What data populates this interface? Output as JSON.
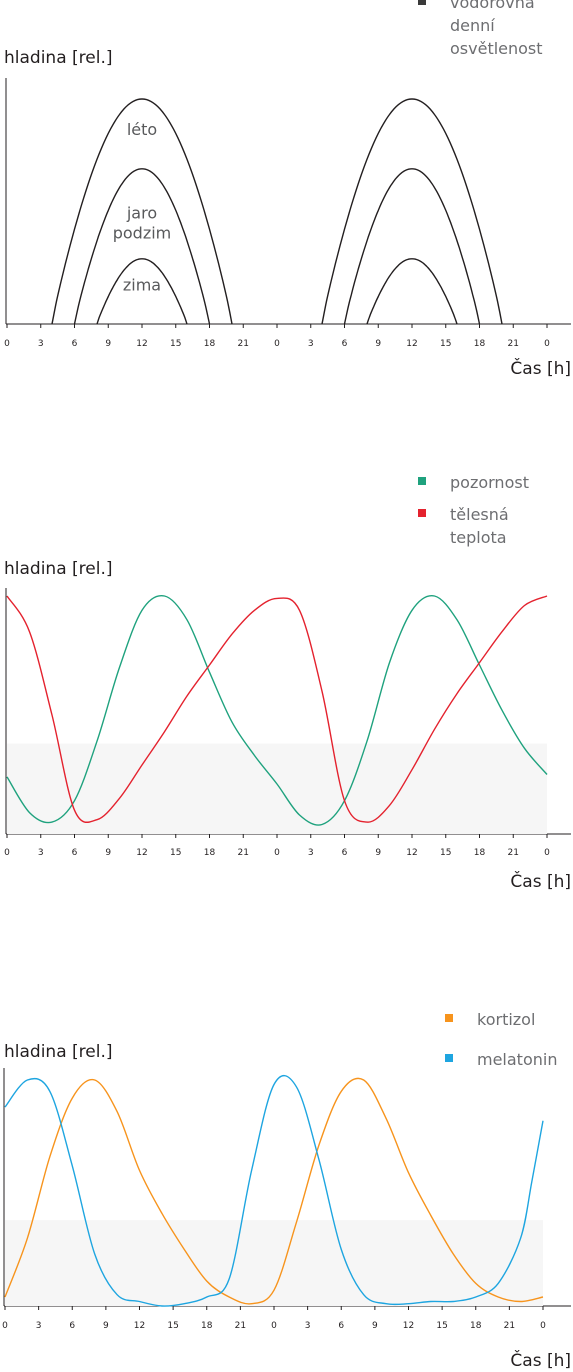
{
  "chart_data": [
    {
      "type": "line",
      "title": "",
      "ylabel": "hladina [rel.]",
      "xlabel": "Čas [h]",
      "x_ticks": [
        "0",
        "3",
        "6",
        "9",
        "12",
        "15",
        "18",
        "21",
        "0",
        "3",
        "6",
        "9",
        "12",
        "15",
        "18",
        "21",
        "0"
      ],
      "xlim": [
        0,
        48
      ],
      "ylim": [
        0,
        1
      ],
      "legend_placement": "top-right",
      "legend": [
        {
          "label": "vodorovná denní osvětlenost",
          "color": "#3a3a3a",
          "lines": [
            "vodorovná",
            "denní",
            "osvětlenost"
          ]
        }
      ],
      "annotations": [
        {
          "text": "léto",
          "x": 12,
          "y": 0.84
        },
        {
          "text": "jaro",
          "x": 12,
          "y": 0.47
        },
        {
          "text": "podzim",
          "x": 12,
          "y": 0.38
        },
        {
          "text": "zima",
          "x": 12,
          "y": 0.15
        }
      ],
      "series": [
        {
          "name": "léto",
          "color": "#231f20",
          "rise": 4,
          "set": 20,
          "peak_x": 12,
          "peak": 1.0
        },
        {
          "name": "jaro podzim",
          "color": "#231f20",
          "rise": 6,
          "set": 18,
          "peak_x": 12,
          "peak": 0.69
        },
        {
          "name": "zima",
          "color": "#231f20",
          "rise": 8,
          "set": 16,
          "peak_x": 12,
          "peak": 0.29
        }
      ]
    },
    {
      "type": "line",
      "title": "",
      "ylabel": "hladina [rel.]",
      "xlabel": "Čas [h]",
      "x_ticks": [
        "0",
        "3",
        "6",
        "9",
        "12",
        "15",
        "18",
        "21",
        "0",
        "3",
        "6",
        "9",
        "12",
        "15",
        "18",
        "21",
        "0"
      ],
      "xlim": [
        0,
        48
      ],
      "ylim": [
        0,
        1
      ],
      "legend_placement": "top-right",
      "legend": [
        {
          "label": "pozornost",
          "color": "#1fa27e",
          "lines": [
            "pozornost"
          ]
        },
        {
          "label": "tělesná teplota",
          "color": "#e4222e",
          "lines": [
            "tělesná",
            "teplota"
          ]
        }
      ],
      "series": [
        {
          "name": "pozornost",
          "color": "#1fa27e",
          "x": [
            0,
            2,
            4,
            6,
            8,
            10,
            12,
            14,
            16,
            18,
            20,
            22,
            24,
            26,
            28,
            30,
            32,
            34,
            36,
            38,
            40,
            42,
            44,
            46,
            48
          ],
          "y": [
            0.24,
            0.09,
            0.05,
            0.14,
            0.39,
            0.7,
            0.94,
            1.0,
            0.9,
            0.68,
            0.47,
            0.33,
            0.21,
            0.08,
            0.04,
            0.14,
            0.39,
            0.72,
            0.94,
            1.0,
            0.9,
            0.71,
            0.52,
            0.36,
            0.25
          ]
        },
        {
          "name": "tělesná teplota",
          "color": "#e4222e",
          "x": [
            0,
            2,
            4,
            6,
            8,
            10,
            12,
            14,
            16,
            18,
            20,
            22,
            24,
            26,
            28,
            30,
            32,
            34,
            36,
            38,
            40,
            42,
            44,
            46,
            48
          ],
          "y": [
            1.0,
            0.85,
            0.5,
            0.1,
            0.06,
            0.15,
            0.29,
            0.43,
            0.58,
            0.71,
            0.84,
            0.94,
            0.99,
            0.94,
            0.6,
            0.14,
            0.05,
            0.12,
            0.27,
            0.44,
            0.59,
            0.72,
            0.85,
            0.96,
            1.0
          ]
        }
      ]
    },
    {
      "type": "line",
      "title": "",
      "ylabel": "hladina [rel.]",
      "xlabel": "Čas [h]",
      "x_ticks": [
        "0",
        "3",
        "6",
        "9",
        "12",
        "15",
        "18",
        "21",
        "0",
        "3",
        "6",
        "9",
        "12",
        "15",
        "18",
        "21",
        "0"
      ],
      "xlim": [
        0,
        48
      ],
      "ylim": [
        0,
        1
      ],
      "legend_placement": "top-right",
      "legend": [
        {
          "label": "kortizol",
          "color": "#f7941d",
          "lines": [
            "kortizol"
          ]
        },
        {
          "label": "melatonin",
          "color": "#1ea5e0",
          "lines": [
            "melatonin"
          ]
        }
      ],
      "series": [
        {
          "name": "kortizol",
          "color": "#f7941d",
          "x": [
            0,
            2,
            4,
            6,
            8,
            10,
            12,
            14,
            16,
            18,
            20,
            22,
            24,
            26,
            28,
            30,
            32,
            34,
            36,
            38,
            40,
            42,
            44,
            46,
            48
          ],
          "y": [
            0.04,
            0.3,
            0.66,
            0.92,
            1.0,
            0.86,
            0.6,
            0.41,
            0.25,
            0.11,
            0.04,
            0.01,
            0.07,
            0.37,
            0.71,
            0.95,
            1.0,
            0.83,
            0.59,
            0.4,
            0.23,
            0.1,
            0.04,
            0.02,
            0.04
          ]
        },
        {
          "name": "melatonin",
          "color": "#1ea5e0",
          "x": [
            0,
            2,
            4,
            6,
            8,
            10,
            12,
            14,
            16,
            18,
            20,
            22,
            24,
            26,
            28,
            30,
            32,
            34,
            36,
            38,
            40,
            42,
            44,
            46,
            47,
            48
          ],
          "y": [
            0.88,
            1.0,
            0.95,
            0.62,
            0.23,
            0.05,
            0.02,
            0.0,
            0.01,
            0.04,
            0.12,
            0.6,
            0.98,
            0.97,
            0.65,
            0.25,
            0.05,
            0.01,
            0.01,
            0.02,
            0.02,
            0.04,
            0.1,
            0.3,
            0.55,
            0.82
          ]
        }
      ]
    }
  ]
}
